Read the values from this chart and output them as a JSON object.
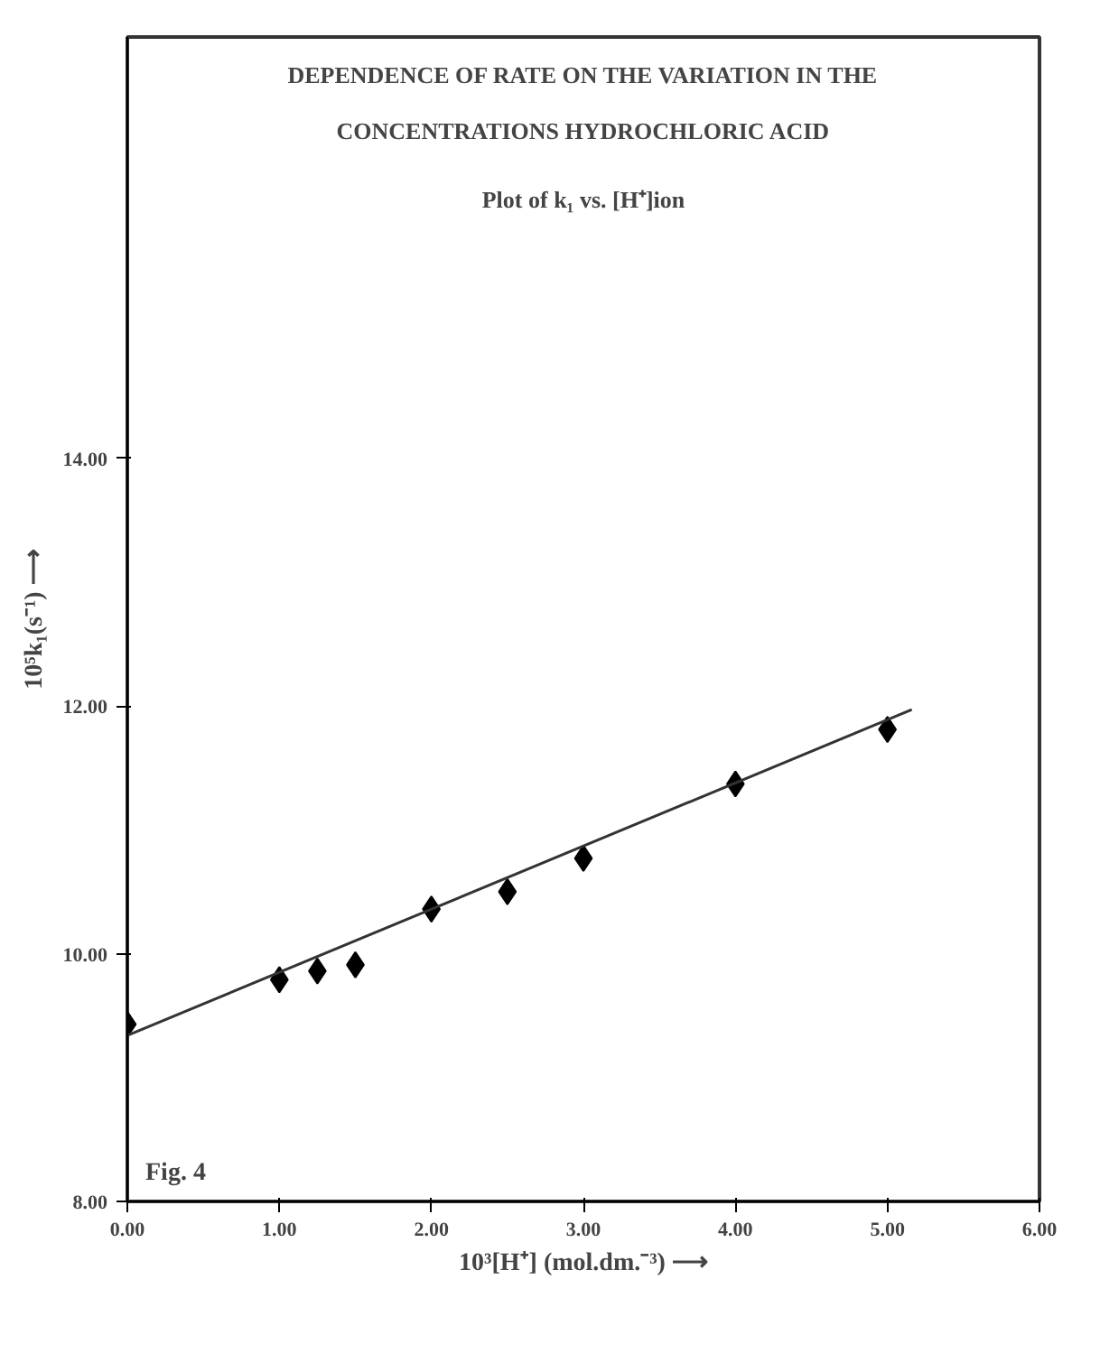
{
  "chart_data": {
    "type": "scatter",
    "title": "DEPENDENCE OF RATE ON THE VARIATION IN THE CONCENTRATIONS HYDROCHLORIC ACID",
    "subtitle": "Plot of k₁ vs. [H⁺]ion",
    "xlabel": "10³[H⁺] (mol.dm.⁻³) ⟶",
    "ylabel": "10⁵k₁(s⁻¹) ⟶",
    "annotations": [
      "Fig. 4"
    ],
    "xlim": [
      0,
      6
    ],
    "ylim": [
      8,
      17.4
    ],
    "xticks": [
      {
        "value": 0,
        "label": "0.00"
      },
      {
        "value": 1,
        "label": "1.00"
      },
      {
        "value": 2,
        "label": "2.00"
      },
      {
        "value": 3,
        "label": "3.00"
      },
      {
        "value": 4,
        "label": "4.00"
      },
      {
        "value": 5,
        "label": "5.00"
      },
      {
        "value": 6,
        "label": "6.00"
      }
    ],
    "yticks": [
      {
        "value": 8,
        "label": "8.00"
      },
      {
        "value": 10,
        "label": "10.00"
      },
      {
        "value": 12,
        "label": "12.00"
      },
      {
        "value": 14,
        "label": "14.00"
      }
    ],
    "grid": false,
    "marker": "diamond",
    "series": [
      {
        "color": "#000000",
        "x": [
          0,
          1,
          1.25,
          1.5,
          2,
          2.5,
          3,
          4,
          5
        ],
        "values": [
          9.43,
          9.79,
          9.86,
          9.91,
          10.36,
          10.5,
          10.77,
          11.37,
          11.81
        ]
      },
      {
        "type": "line",
        "color": "#333333",
        "line_style": "solid",
        "marker": "none",
        "x": [
          0,
          5.16
        ],
        "values": [
          9.34,
          11.97
        ]
      }
    ]
  }
}
